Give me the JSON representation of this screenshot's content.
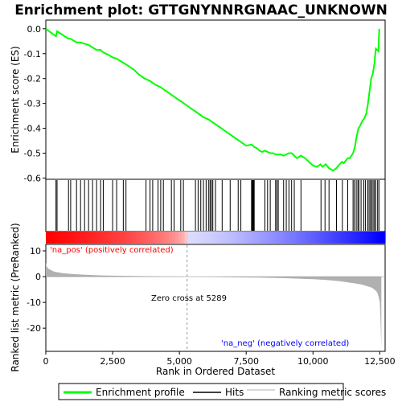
{
  "chart_data": [
    {
      "panel": "enrichment",
      "type": "line",
      "title": "Enrichment plot: GTTGNYNNRGNAAC_UNKNOWN",
      "ylabel": "Enrichment score (ES)",
      "xlim": [
        0,
        12700
      ],
      "ylim": [
        -0.605,
        0.035
      ],
      "yticks": [
        0.0,
        -0.1,
        -0.2,
        -0.3,
        -0.4,
        -0.5,
        -0.6
      ],
      "ytick_labels": [
        "0.0",
        "-0.1",
        "-0.2",
        "-0.3",
        "-0.4",
        "-0.5",
        "-0.6"
      ],
      "grid": false,
      "series": [
        {
          "name": "Enrichment profile",
          "color": "#00ff00",
          "x": [
            0,
            380,
            420,
            850,
            930,
            1150,
            1300,
            1450,
            1600,
            1750,
            1900,
            2050,
            2150,
            2350,
            2500,
            2650,
            2800,
            2950,
            3100,
            3300,
            3500,
            3700,
            3900,
            4100,
            4300,
            4500,
            4700,
            4900,
            5100,
            5300,
            5500,
            5700,
            5900,
            6100,
            6300,
            6500,
            6700,
            6900,
            7100,
            7300,
            7500,
            7700,
            7800,
            7900,
            8000,
            8100,
            8200,
            8400,
            8500,
            8600,
            8800,
            8900,
            9100,
            9200,
            9400,
            9550,
            9700,
            9850,
            10000,
            10150,
            10280,
            10350,
            10480,
            10600,
            10750,
            10880,
            10950,
            11080,
            11150,
            11300,
            11380,
            11500,
            11580,
            11620,
            11700,
            11760,
            11850,
            11920,
            12000,
            12060,
            12120,
            12180,
            12240,
            12300,
            12350,
            12450,
            12480
          ],
          "y": [
            0.0,
            -0.03,
            -0.01,
            -0.04,
            -0.04,
            -0.055,
            -0.055,
            -0.06,
            -0.065,
            -0.075,
            -0.085,
            -0.085,
            -0.095,
            -0.105,
            -0.115,
            -0.12,
            -0.13,
            -0.14,
            -0.15,
            -0.165,
            -0.185,
            -0.2,
            -0.21,
            -0.225,
            -0.235,
            -0.25,
            -0.265,
            -0.28,
            -0.295,
            -0.31,
            -0.325,
            -0.34,
            -0.355,
            -0.365,
            -0.38,
            -0.395,
            -0.41,
            -0.425,
            -0.44,
            -0.455,
            -0.47,
            -0.465,
            -0.475,
            -0.48,
            -0.49,
            -0.495,
            -0.49,
            -0.5,
            -0.5,
            -0.505,
            -0.505,
            -0.51,
            -0.5,
            -0.5,
            -0.52,
            -0.51,
            -0.52,
            -0.535,
            -0.55,
            -0.555,
            -0.545,
            -0.555,
            -0.545,
            -0.56,
            -0.57,
            -0.56,
            -0.55,
            -0.535,
            -0.54,
            -0.52,
            -0.52,
            -0.5,
            -0.47,
            -0.44,
            -0.4,
            -0.39,
            -0.37,
            -0.36,
            -0.34,
            -0.3,
            -0.25,
            -0.2,
            -0.18,
            -0.14,
            -0.08,
            -0.09,
            0.0
          ]
        }
      ]
    },
    {
      "panel": "hits",
      "type": "scatter",
      "series": [
        {
          "name": "Hits",
          "color": "#000000",
          "x": [
            380,
            420,
            850,
            930,
            1150,
            1300,
            1450,
            1600,
            1750,
            1900,
            2050,
            2150,
            2500,
            2650,
            2900,
            3000,
            3750,
            3900,
            4000,
            4200,
            4300,
            4400,
            4700,
            4800,
            5050,
            5150,
            5600,
            5700,
            5800,
            5900,
            6000,
            6100,
            6150,
            6200,
            6250,
            6350,
            6600,
            6900,
            7200,
            7300,
            7700,
            7720,
            7750,
            7780,
            7800,
            8200,
            8300,
            8400,
            8600,
            8650,
            8700,
            8900,
            9000,
            9100,
            9200,
            9300,
            9550,
            10300,
            10450,
            10600,
            10880,
            11100,
            11300,
            11500,
            11550,
            11620,
            11680,
            11720,
            11800,
            11900,
            11960,
            12050,
            12100,
            12150,
            12200,
            12250,
            12300,
            12350,
            12420,
            12470
          ]
        }
      ]
    },
    {
      "panel": "ranked_metric",
      "type": "area",
      "ylabel": "Ranked list metric (PreRanked)",
      "xlabel": "Rank in Ordered Dataset",
      "xlim": [
        0,
        12700
      ],
      "ylim": [
        -29,
        12.5
      ],
      "xticks": [
        0,
        2500,
        5000,
        7500,
        10000,
        12500
      ],
      "xtick_labels": [
        "0",
        "2,500",
        "5,000",
        "7,500",
        "10,000",
        "12,500"
      ],
      "yticks": [
        10,
        0,
        -10,
        -20
      ],
      "ytick_labels": [
        "10",
        "0",
        "-10",
        "-20"
      ],
      "zero_cross": 5289,
      "series": [
        {
          "name": "Ranking metric scores",
          "color": "#b0b0b0",
          "x": [
            0,
            30,
            100,
            300,
            600,
            1000,
            1500,
            2000,
            3000,
            4000,
            5000,
            5289,
            6000,
            7000,
            8000,
            9000,
            10000,
            10500,
            11000,
            11500,
            11800,
            12000,
            12200,
            12300,
            12400,
            12450,
            12500,
            12530,
            12560
          ],
          "values": [
            5.5,
            4.0,
            3.0,
            2.0,
            1.4,
            1.0,
            0.7,
            0.5,
            0.3,
            0.15,
            0.05,
            0.0,
            -0.1,
            -0.25,
            -0.4,
            -0.6,
            -1.0,
            -1.3,
            -1.8,
            -2.5,
            -3.0,
            -3.6,
            -4.3,
            -5.0,
            -6.0,
            -7.5,
            -10.0,
            -18.0,
            -28.0
          ]
        }
      ]
    }
  ],
  "annotations": {
    "pos_label": "'na_pos' (positively correlated)",
    "neg_label": "'na_neg' (negatively correlated)",
    "zero_cross": "Zero cross at 5289",
    "colors": {
      "pos": "#ff0000",
      "neg": "#0000ff"
    }
  },
  "legend": {
    "placement": "bottom",
    "items": [
      {
        "label": "Enrichment profile",
        "color": "#00ff00",
        "kind": "line"
      },
      {
        "label": "Hits",
        "color": "#000000",
        "kind": "line"
      },
      {
        "label": "Ranking metric scores",
        "color": "#b0b0b0",
        "kind": "line"
      }
    ]
  }
}
